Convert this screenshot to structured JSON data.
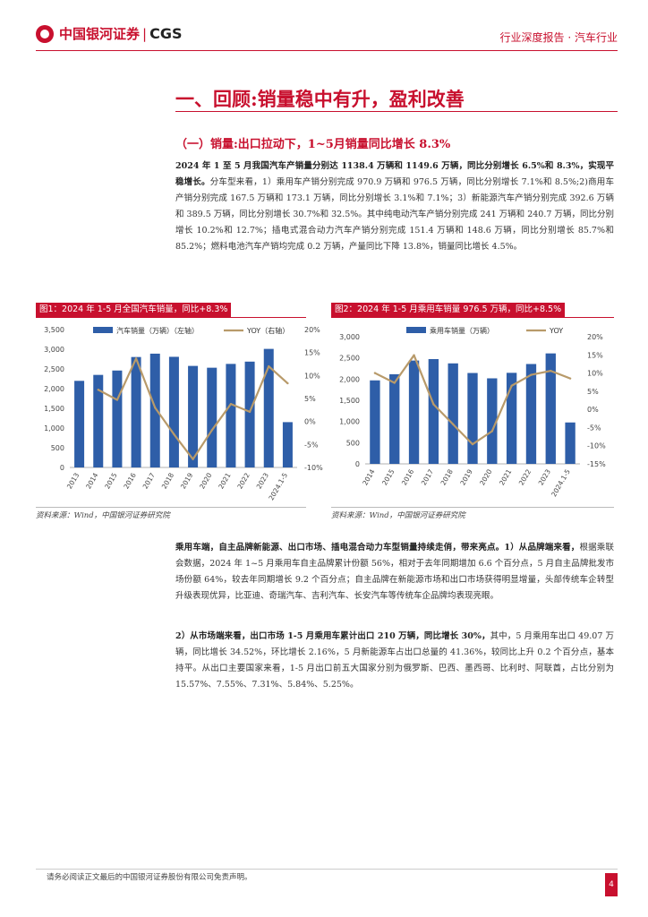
{
  "header": {
    "logo_cn": "中国银河证券",
    "logo_sep": "|",
    "logo_en": "CGS",
    "report_type": "行业深度报告 · 汽车行业"
  },
  "section": {
    "title": "一、回顾:销量稳中有升，盈利改善",
    "subtitle": "（一）销量:出口拉动下，1~5月销量同比增长 8.3%"
  },
  "paragraphs": {
    "p1_bold": "2024 年 1 至 5 月我国汽车产销量分别达 1138.4 万辆和 1149.6 万辆，同比分别增长 6.5%和 8.3%，实现平稳增长。",
    "p1_rest": "分车型来看，1）乘用车产销分别完成 970.9 万辆和 976.5 万辆，同比分别增长 7.1%和 8.5%;2)商用车产销分别完成 167.5 万辆和 173.1 万辆，同比分别增长 3.1%和 7.1%；3）新能源汽车产销分别完成 392.6 万辆和 389.5 万辆，同比分别增长 30.7%和 32.5%。其中纯电动汽车产销分别完成 241 万辆和 240.7 万辆，同比分别增长 10.2%和 12.7%；插电式混合动力汽车产销分别完成 151.4 万辆和 148.6 万辆，同比分别增长 85.7%和 85.2%；燃料电池汽车产销均完成 0.2 万辆，产量同比下降 13.8%，销量同比增长 4.5%。",
    "p2_bold": "乘用车端，自主品牌新能源、出口市场、插电混合动力车型销量持续走俏，带来亮点。1）从品牌端来看，",
    "p2_rest": "根据乘联会数据，2024 年 1~5 月乘用车自主品牌累计份额 56%，相对于去年同期增加 6.6 个百分点，5 月自主品牌批发市场份额 64%，较去年同期增长 9.2 个百分点；自主品牌在新能源市场和出口市场获得明显增量，头部传统车企转型升级表现优异，比亚迪、奇瑞汽车、吉利汽车、长安汽车等传统车企品牌均表现亮眼。",
    "p3_bold": "2）从市场端来看，出口市场 1-5 月乘用车累计出口 210 万辆，同比增长 30%，",
    "p3_rest": "其中，5 月乘用车出口 49.07 万辆，同比增长 34.52%，环比增长 2.16%，5 月新能源车占出口总量的 41.36%，较同比上升 0.2 个百分点，基本持平。从出口主要国家来看，1-5 月出口前五大国家分别为俄罗斯、巴西、墨西哥、比利时、阿联酋，占比分别为 15.57%、7.55%、7.31%、5.84%、5.25%。"
  },
  "figures": [
    {
      "title": "图1：2024 年 1-5 月全国汽车销量，同比+8.3%",
      "source": "资料来源：Wind，中国银河证券研究院"
    },
    {
      "title": "图2：2024 年 1-5 月乘用车销量 976.5 万辆，同比+8.5%",
      "source": "资料来源：Wind，中国银河证券研究院"
    }
  ],
  "chart_data": [
    {
      "type": "bar",
      "categories": [
        "2013",
        "2014",
        "2015",
        "2016",
        "2017",
        "2018",
        "2019",
        "2020",
        "2021",
        "2022",
        "2023",
        "2024.1-5"
      ],
      "series": [
        {
          "name": "汽车销量（万辆）（左轴）",
          "type": "bar",
          "values": [
            2198,
            2349,
            2460,
            2803,
            2888,
            2808,
            2577,
            2531,
            2628,
            2686,
            3009,
            1150
          ]
        },
        {
          "name": "YOY（右轴）",
          "type": "line",
          "values": [
            null,
            6.9,
            4.7,
            13.7,
            3.0,
            -2.8,
            -8.2,
            -1.9,
            3.8,
            2.1,
            12.0,
            8.3
          ]
        }
      ],
      "ylim": [
        0,
        3500
      ],
      "y2lim": [
        -10,
        20
      ],
      "yticks": [
        "0",
        "500",
        "1,000",
        "1,500",
        "2,000",
        "2,500",
        "3,000",
        "3,500"
      ],
      "y2ticks": [
        "-10%",
        "-5%",
        "0%",
        "5%",
        "10%",
        "15%",
        "20%"
      ],
      "colors": {
        "bar": "#2e5ea8",
        "line": "#b89a6a"
      }
    },
    {
      "type": "bar",
      "categories": [
        "2014",
        "2015",
        "2016",
        "2017",
        "2018",
        "2019",
        "2020",
        "2021",
        "2022",
        "2023",
        "2024.1-5"
      ],
      "series": [
        {
          "name": "乘用车销量（万辆）",
          "type": "bar",
          "values": [
            1970,
            2115,
            2438,
            2472,
            2371,
            2144,
            2018,
            2148,
            2356,
            2606,
            977
          ]
        },
        {
          "name": "YOY",
          "type": "line",
          "values": [
            10.0,
            7.3,
            14.9,
            1.4,
            -4.1,
            -9.6,
            -6.0,
            6.5,
            9.5,
            10.6,
            8.5
          ]
        }
      ],
      "ylim": [
        0,
        3000
      ],
      "y2lim": [
        -15,
        20
      ],
      "yticks": [
        "0",
        "500",
        "1,000",
        "1,500",
        "2,000",
        "2,500",
        "3,000"
      ],
      "y2ticks": [
        "-15%",
        "-10%",
        "-5%",
        "0%",
        "5%",
        "10%",
        "15%",
        "20%"
      ],
      "colors": {
        "bar": "#2e5ea8",
        "line": "#b89a6a"
      }
    }
  ],
  "footer": {
    "disclaimer": "请务必阅读正文最后的中国银河证券股份有限公司免责声明。",
    "page": "4"
  }
}
